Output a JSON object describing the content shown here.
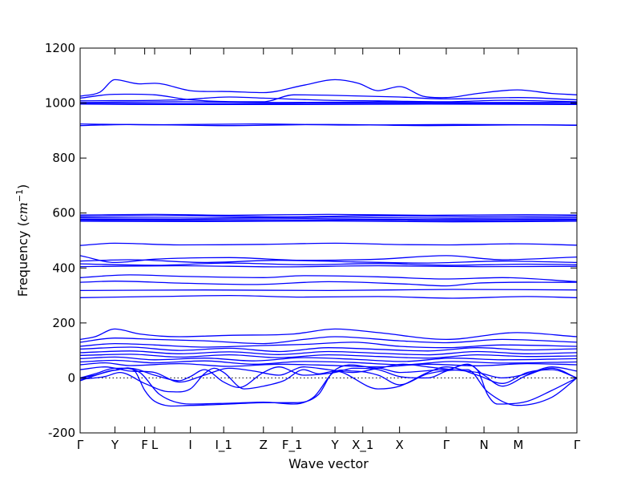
{
  "chart_data": {
    "type": "line",
    "title": "",
    "xlabel": "Wave vector",
    "ylabel": "Frequency (cm⁻¹)",
    "ylabel_main": "Frequency (",
    "ylabel_unit": "cm",
    "ylabel_exp": "−1",
    "ylabel_close": ")",
    "ylim": [
      -200,
      1200
    ],
    "yticks": [
      -200,
      0,
      200,
      400,
      600,
      800,
      1000,
      1200
    ],
    "xlim": [
      0,
      1
    ],
    "grid": false,
    "legend": "none",
    "colors": {
      "bands": "#0000ff",
      "zero_line": "#000000"
    },
    "kpoints": [
      {
        "label": "Γ",
        "x": 0.0
      },
      {
        "label": "Y",
        "x": 0.07
      },
      {
        "label": "F",
        "x": 0.13
      },
      {
        "label": "L",
        "x": 0.15
      },
      {
        "label": "I",
        "x": 0.222
      },
      {
        "label": "I_1",
        "x": 0.289
      },
      {
        "label": "Z",
        "x": 0.369
      },
      {
        "label": "F_1",
        "x": 0.427
      },
      {
        "label": "Y",
        "x": 0.513
      },
      {
        "label": "X_1",
        "x": 0.569
      },
      {
        "label": "X",
        "x": 0.643
      },
      {
        "label": "Γ",
        "x": 0.737
      },
      {
        "label": "N",
        "x": 0.813
      },
      {
        "label": "M",
        "x": 0.882
      },
      {
        "label": "Γ",
        "x": 1.0
      }
    ],
    "series": [
      {
        "x": [
          0,
          0.04,
          0.07,
          0.12,
          0.15,
          0.222,
          0.3,
          0.369,
          0.45,
          0.513,
          0.56,
          0.6,
          0.643,
          0.69,
          0.737,
          0.8,
          0.88,
          0.95,
          1.0
        ],
        "y": [
          1025,
          1040,
          1085,
          1070,
          1072,
          1045,
          1042,
          1038,
          1065,
          1085,
          1072,
          1045,
          1060,
          1025,
          1020,
          1035,
          1048,
          1035,
          1030
        ]
      },
      {
        "x": [
          0,
          0.07,
          0.15,
          0.222,
          0.369,
          0.43,
          0.513,
          0.643,
          0.737,
          0.882,
          1.0
        ],
        "y": [
          1018,
          1032,
          1030,
          1012,
          1005,
          1030,
          1028,
          1022,
          1015,
          1020,
          1012
        ]
      },
      {
        "x": [
          0,
          0.2,
          0.3,
          0.369,
          0.5,
          0.6,
          0.737,
          0.85,
          1.0
        ],
        "y": [
          1008,
          1012,
          1022,
          1018,
          1010,
          1008,
          1005,
          1010,
          1005
        ]
      },
      {
        "x": [
          0,
          0.2,
          0.4,
          0.6,
          0.8,
          1.0
        ],
        "y": [
          1002,
          1005,
          1002,
          1004,
          1002,
          1003
        ]
      },
      {
        "x": [
          0,
          0.3,
          0.5,
          0.737,
          1.0
        ],
        "y": [
          999,
          998,
          1000,
          999,
          998
        ]
      },
      {
        "x": [
          0,
          0.2,
          0.45,
          0.7,
          1.0
        ],
        "y": [
          996,
          995,
          995,
          996,
          995
        ]
      },
      {
        "x": [
          0,
          0.15,
          0.35,
          0.55,
          0.75,
          1.0
        ],
        "y": [
          924,
          921,
          924,
          920,
          922,
          920
        ]
      },
      {
        "x": [
          0,
          0.1,
          0.3,
          0.5,
          0.7,
          0.9,
          1.0
        ],
        "y": [
          918,
          922,
          918,
          922,
          918,
          921,
          919
        ]
      },
      {
        "x": [
          0,
          0.15,
          0.3,
          0.5,
          0.7,
          0.9,
          1.0
        ],
        "y": [
          593,
          595,
          592,
          595,
          592,
          594,
          593
        ]
      },
      {
        "x": [
          0,
          0.2,
          0.4,
          0.6,
          0.8,
          1.0
        ],
        "y": [
          588,
          590,
          586,
          590,
          587,
          589
        ]
      },
      {
        "x": [
          0,
          0.25,
          0.5,
          0.75,
          1.0
        ],
        "y": [
          583,
          582,
          585,
          581,
          583
        ]
      },
      {
        "x": [
          0,
          0.2,
          0.45,
          0.7,
          1.0
        ],
        "y": [
          578,
          577,
          580,
          576,
          578
        ]
      },
      {
        "x": [
          0,
          0.3,
          0.55,
          0.8,
          1.0
        ],
        "y": [
          574,
          573,
          575,
          572,
          574
        ]
      },
      {
        "x": [
          0,
          0.25,
          0.5,
          0.75,
          1.0
        ],
        "y": [
          570,
          569,
          571,
          568,
          570
        ]
      },
      {
        "x": [
          0,
          0.07,
          0.2,
          0.369,
          0.513,
          0.643,
          0.737,
          0.88,
          1.0
        ],
        "y": [
          482,
          490,
          484,
          486,
          490,
          485,
          484,
          488,
          483
        ]
      },
      {
        "x": [
          0,
          0.07,
          0.15,
          0.3,
          0.45,
          0.6,
          0.737,
          0.85,
          1.0
        ],
        "y": [
          445,
          420,
          432,
          438,
          428,
          432,
          445,
          430,
          440
        ]
      },
      {
        "x": [
          0,
          0.1,
          0.25,
          0.4,
          0.55,
          0.7,
          0.85,
          1.0
        ],
        "y": [
          425,
          430,
          420,
          428,
          422,
          418,
          425,
          420
        ]
      },
      {
        "x": [
          0,
          0.15,
          0.3,
          0.45,
          0.6,
          0.75,
          0.9,
          1.0
        ],
        "y": [
          415,
          410,
          418,
          412,
          416,
          410,
          414,
          412
        ]
      },
      {
        "x": [
          0,
          0.2,
          0.4,
          0.6,
          0.8,
          1.0
        ],
        "y": [
          405,
          408,
          404,
          408,
          405,
          406
        ]
      },
      {
        "x": [
          0,
          0.1,
          0.2,
          0.369,
          0.45,
          0.6,
          0.737,
          0.85,
          1.0
        ],
        "y": [
          365,
          375,
          370,
          365,
          372,
          368,
          360,
          365,
          350
        ]
      },
      {
        "x": [
          0,
          0.07,
          0.2,
          0.35,
          0.5,
          0.65,
          0.737,
          0.8,
          1.0
        ],
        "y": [
          348,
          352,
          345,
          340,
          350,
          342,
          335,
          345,
          348
        ]
      },
      {
        "x": [
          0,
          0.25,
          0.5,
          0.75,
          1.0
        ],
        "y": [
          318,
          320,
          318,
          322,
          320
        ]
      },
      {
        "x": [
          0,
          0.15,
          0.3,
          0.45,
          0.6,
          0.75,
          0.9,
          1.0
        ],
        "y": [
          292,
          296,
          300,
          294,
          296,
          290,
          296,
          292
        ]
      },
      {
        "x": [
          0,
          0.03,
          0.07,
          0.12,
          0.2,
          0.3,
          0.43,
          0.513,
          0.6,
          0.737,
          0.88,
          1.0
        ],
        "y": [
          140,
          150,
          178,
          160,
          150,
          155,
          160,
          178,
          165,
          140,
          165,
          150
        ]
      },
      {
        "x": [
          0,
          0.07,
          0.15,
          0.25,
          0.369,
          0.45,
          0.513,
          0.643,
          0.737,
          0.85,
          1.0
        ],
        "y": [
          130,
          145,
          140,
          135,
          125,
          140,
          150,
          135,
          128,
          140,
          130
        ]
      },
      {
        "x": [
          0,
          0.07,
          0.15,
          0.25,
          0.369,
          0.45,
          0.55,
          0.643,
          0.737,
          0.85,
          1.0
        ],
        "y": [
          115,
          125,
          120,
          112,
          118,
          122,
          130,
          115,
          110,
          120,
          115
        ]
      },
      {
        "x": [
          0,
          0.1,
          0.2,
          0.3,
          0.4,
          0.5,
          0.6,
          0.7,
          0.8,
          0.9,
          1.0
        ],
        "y": [
          105,
          112,
          100,
          108,
          96,
          110,
          104,
          98,
          110,
          102,
          106
        ]
      },
      {
        "x": [
          0,
          0.1,
          0.2,
          0.3,
          0.4,
          0.5,
          0.6,
          0.7,
          0.8,
          0.9,
          1.0
        ],
        "y": [
          92,
          98,
          88,
          95,
          85,
          96,
          90,
          84,
          96,
          88,
          92
        ]
      },
      {
        "x": [
          0,
          0.1,
          0.2,
          0.3,
          0.4,
          0.5,
          0.6,
          0.7,
          0.8,
          0.9,
          1.0
        ],
        "y": [
          82,
          86,
          76,
          84,
          74,
          84,
          78,
          72,
          84,
          78,
          80
        ]
      },
      {
        "x": [
          0,
          0.07,
          0.15,
          0.25,
          0.35,
          0.45,
          0.55,
          0.65,
          0.75,
          0.85,
          1.0
        ],
        "y": [
          70,
          76,
          66,
          72,
          62,
          74,
          68,
          60,
          72,
          66,
          70
        ]
      },
      {
        "x": [
          0,
          0.07,
          0.15,
          0.25,
          0.35,
          0.45,
          0.55,
          0.65,
          0.75,
          0.85,
          1.0
        ],
        "y": [
          58,
          64,
          55,
          62,
          50,
          60,
          56,
          48,
          60,
          54,
          58
        ]
      },
      {
        "x": [
          0,
          0.05,
          0.1,
          0.2,
          0.3,
          0.4,
          0.5,
          0.6,
          0.7,
          0.8,
          0.9,
          1.0
        ],
        "y": [
          48,
          55,
          45,
          52,
          42,
          50,
          46,
          40,
          50,
          44,
          52,
          48
        ]
      },
      {
        "x": [
          0,
          0.03,
          0.07,
          0.11,
          0.13,
          0.15,
          0.222,
          0.3,
          0.369,
          0.43,
          0.48,
          0.51,
          0.6,
          0.643,
          0.737,
          0.8,
          0.82,
          0.84,
          0.9,
          0.95,
          1.0
        ],
        "y": [
          0,
          10,
          28,
          25,
          -45,
          -85,
          -100,
          -95,
          -90,
          -90,
          -60,
          25,
          35,
          20,
          30,
          28,
          -60,
          -95,
          -85,
          -45,
          0
        ]
      },
      {
        "x": [
          0,
          0.03,
          0.07,
          0.12,
          0.16,
          0.222,
          0.3,
          0.369,
          0.43,
          0.47,
          0.51,
          0.55,
          0.6,
          0.643,
          0.7,
          0.78,
          0.82,
          0.88,
          0.95,
          1.0
        ],
        "y": [
          0,
          15,
          35,
          20,
          -60,
          -95,
          -92,
          -88,
          -95,
          -70,
          20,
          25,
          10,
          -25,
          15,
          30,
          -50,
          -100,
          -70,
          0
        ]
      },
      {
        "x": [
          0,
          0.05,
          0.08,
          0.13,
          0.18,
          0.222,
          0.25,
          0.27,
          0.289,
          0.33,
          0.369,
          0.41,
          0.45,
          0.48,
          0.513,
          0.6,
          0.643,
          0.7,
          0.737,
          0.8,
          0.85,
          0.9,
          0.95,
          1.0
        ],
        "y": [
          -5,
          5,
          20,
          -20,
          -50,
          -40,
          15,
          35,
          20,
          -40,
          -30,
          -10,
          30,
          15,
          25,
          -40,
          -30,
          20,
          40,
          10,
          -20,
          20,
          30,
          0
        ]
      },
      {
        "x": [
          0,
          0.05,
          0.1,
          0.15,
          0.2,
          0.222,
          0.25,
          0.289,
          0.32,
          0.369,
          0.4,
          0.45,
          0.513,
          0.55,
          0.6,
          0.643,
          0.7,
          0.737,
          0.78,
          0.813,
          0.85,
          0.9,
          0.95,
          1.0
        ],
        "y": [
          -10,
          20,
          35,
          10,
          -10,
          5,
          30,
          -15,
          -35,
          20,
          40,
          10,
          20,
          35,
          30,
          5,
          0,
          25,
          50,
          10,
          -30,
          10,
          35,
          0
        ]
      },
      {
        "x": [
          0,
          0.05,
          0.1,
          0.15,
          0.2,
          0.25,
          0.3,
          0.35,
          0.4,
          0.45,
          0.5,
          0.55,
          0.6,
          0.65,
          0.7,
          0.75,
          0.8,
          0.85,
          0.9,
          0.95,
          1.0
        ],
        "y": [
          30,
          40,
          25,
          20,
          -15,
          10,
          35,
          25,
          10,
          40,
          30,
          20,
          35,
          50,
          40,
          30,
          20,
          0,
          15,
          40,
          25
        ]
      }
    ]
  }
}
